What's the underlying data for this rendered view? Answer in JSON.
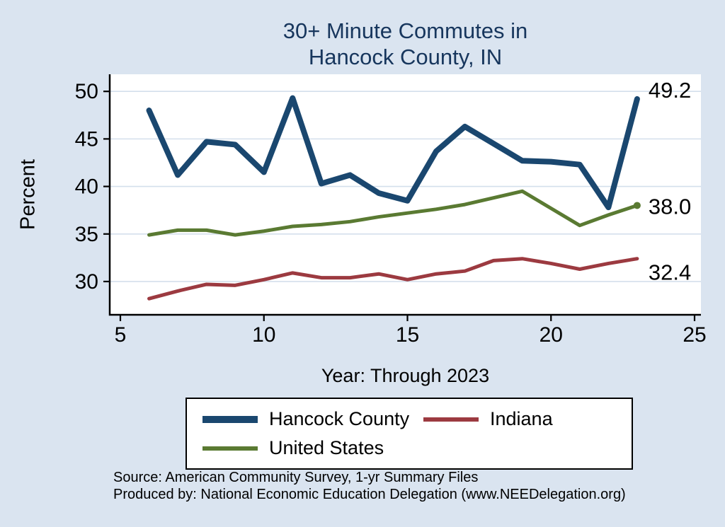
{
  "title": {
    "line1": "30+ Minute Commutes in",
    "line2": "Hancock County, IN"
  },
  "axes": {
    "y_label": "Percent",
    "x_label": "Year: Through 2023"
  },
  "chart_data": {
    "type": "line",
    "title": "30+ Minute Commutes in Hancock County, IN",
    "xlabel": "Year: Through 2023",
    "ylabel": "Percent",
    "x_ticks": [
      5,
      10,
      15,
      20,
      25
    ],
    "y_ticks": [
      30,
      35,
      40,
      45,
      50
    ],
    "xlim": [
      5,
      25
    ],
    "ylim": [
      26.5,
      51.8
    ],
    "grid": true,
    "legend_position": "bottom",
    "x": [
      6,
      7,
      8,
      9,
      10,
      11,
      12,
      13,
      14,
      15,
      16,
      17,
      18,
      19,
      20,
      21,
      22,
      23
    ],
    "series": [
      {
        "name": "Hancock County",
        "color": "#1a476f",
        "values": [
          48.0,
          41.2,
          44.7,
          44.4,
          41.5,
          49.3,
          40.3,
          41.2,
          39.3,
          38.5,
          43.7,
          46.3,
          44.5,
          42.7,
          42.6,
          42.3,
          37.8,
          49.2
        ],
        "end_label": "49.2"
      },
      {
        "name": "United States",
        "color": "#5a7a32",
        "values": [
          34.9,
          35.4,
          35.4,
          34.9,
          35.3,
          35.8,
          36.0,
          36.3,
          36.8,
          37.2,
          37.6,
          38.1,
          38.8,
          39.5,
          37.7,
          35.9,
          37.0,
          38.0
        ],
        "end_label": "38.0"
      },
      {
        "name": "Indiana",
        "color": "#9c3a40",
        "values": [
          28.2,
          29.0,
          29.7,
          29.6,
          30.2,
          30.9,
          30.4,
          30.4,
          30.8,
          30.2,
          30.8,
          31.1,
          32.2,
          32.4,
          31.9,
          31.3,
          31.9,
          32.4
        ],
        "end_label": "32.4"
      }
    ]
  },
  "legend": {
    "items": [
      {
        "label": "Hancock County",
        "color": "#1a476f"
      },
      {
        "label": "Indiana",
        "color": "#9c3a40"
      },
      {
        "label": "United States",
        "color": "#5a7a32"
      }
    ]
  },
  "footer": {
    "source": "Source: American Community Survey, 1-yr Summary Files",
    "produced": "Produced by: National Economic Education Delegation (www.NEEDelegation.org)"
  },
  "colors": {
    "background": "#dae4f0",
    "plot_background": "#ffffff",
    "gridline": "#d4dfec",
    "axis": "#000000",
    "title_text": "#17365d"
  }
}
